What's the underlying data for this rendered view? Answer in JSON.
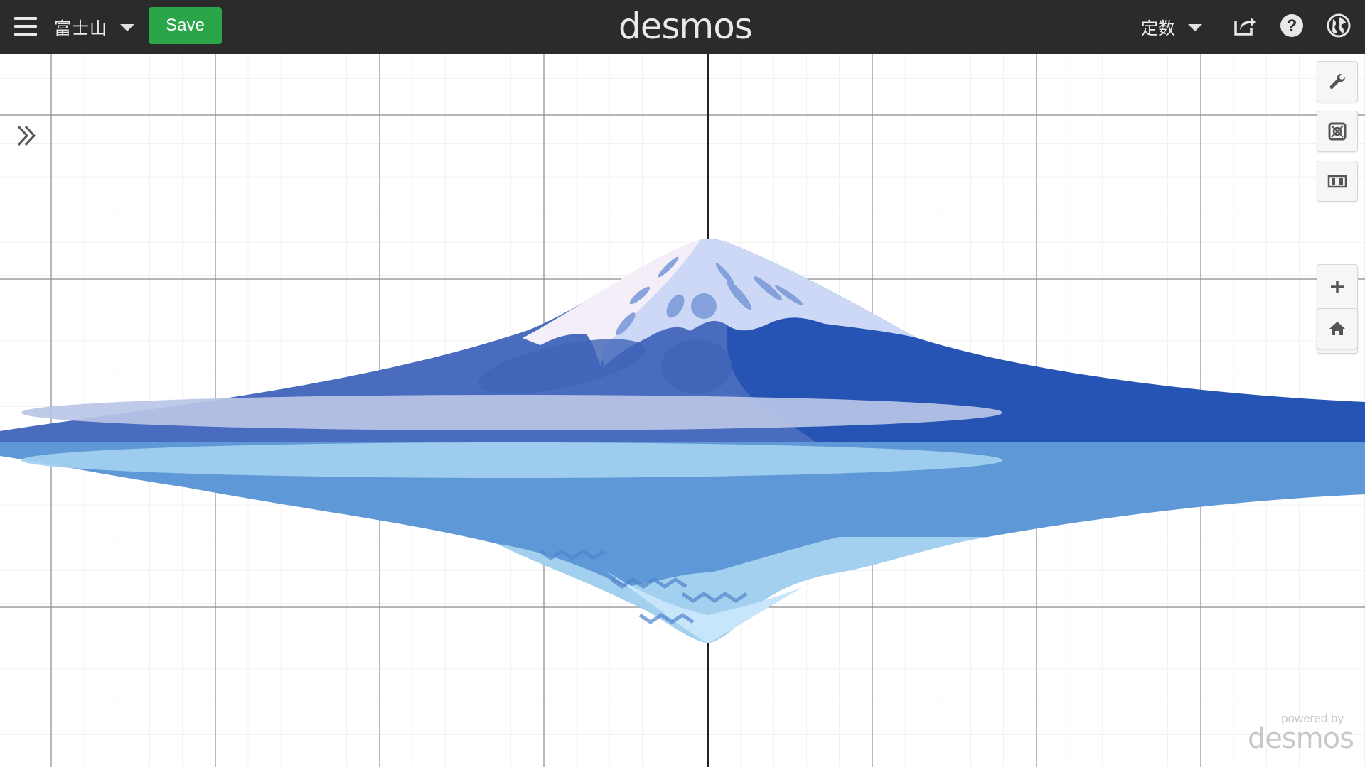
{
  "app": {
    "logo": "desmos",
    "graph_title": "富士山",
    "save_label": "Save",
    "language": "定数"
  },
  "powered_by": {
    "small": "powered by",
    "brand": "desmos"
  },
  "icons": {
    "menu": "hamburger-icon",
    "title_dropdown": "chevron-down-icon",
    "language_dropdown": "chevron-down-icon",
    "share": "share-icon",
    "help": "help-icon",
    "globe": "globe-icon",
    "expand": "double-chevron-right-icon",
    "settings": "wrench-icon",
    "projector": "projector-icon",
    "film": "film-icon",
    "zoom_in": "plus-icon",
    "zoom_out": "minus-icon",
    "home": "home-icon"
  },
  "colors": {
    "topbar": "#2b2b2b",
    "save_button": "#2ba54a",
    "mountain_dark": "#2654b5",
    "mountain_mid": "#4a6cbe",
    "snow": "#f3eef8",
    "snow_shadow": "#ccd8f5",
    "mist": "#b9c6e6",
    "water": "#5f98d6",
    "water_light": "#a4d0f0",
    "reflection_snow": "#c8e6fb"
  }
}
